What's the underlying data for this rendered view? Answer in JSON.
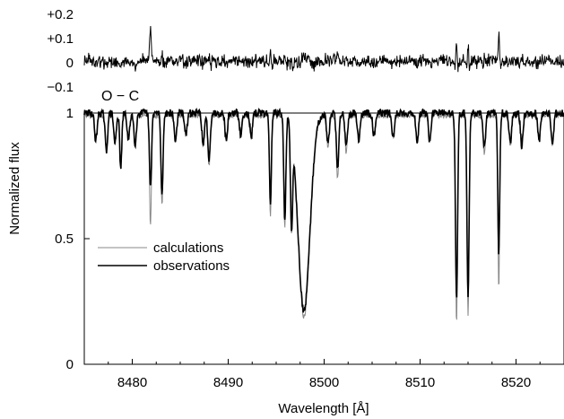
{
  "chart_data": {
    "type": "line",
    "xlabel": "Wavelength [Å]",
    "ylabel": "Normalized flux",
    "xlim": [
      8475,
      8525
    ],
    "ylim": [
      0,
      1
    ],
    "x_ticks": [
      8480,
      8490,
      8500,
      8510,
      8520
    ],
    "x_tick_labels": [
      "8480",
      "8490",
      "8500",
      "8510",
      "8520"
    ],
    "y_ticks": [
      0,
      0.5,
      1
    ],
    "y_tick_labels": [
      "0",
      "0.5",
      "1"
    ],
    "residual_panel": {
      "label": "O − C",
      "ylim": [
        -0.1,
        0.2
      ],
      "y_ticks": [
        -0.1,
        0,
        0.1,
        0.2
      ],
      "y_tick_labels": [
        "−0.1",
        "0",
        "+0.1",
        "+0.2"
      ]
    },
    "legend": {
      "placement": "lower-left",
      "entries": [
        "calculations",
        "observations"
      ]
    },
    "series": [
      {
        "name": "calculations",
        "color": "#888888",
        "lines": [
          {
            "center": 8476.2,
            "depth": 0.1,
            "width": 0.12
          },
          {
            "center": 8477.3,
            "depth": 0.14,
            "width": 0.12
          },
          {
            "center": 8478.2,
            "depth": 0.12,
            "width": 0.12
          },
          {
            "center": 8478.8,
            "depth": 0.2,
            "width": 0.1
          },
          {
            "center": 8479.6,
            "depth": 0.1,
            "width": 0.12
          },
          {
            "center": 8480.3,
            "depth": 0.11,
            "width": 0.12
          },
          {
            "center": 8481.9,
            "depth": 0.44,
            "width": 0.1
          },
          {
            "center": 8483.1,
            "depth": 0.36,
            "width": 0.1
          },
          {
            "center": 8484.5,
            "depth": 0.1,
            "width": 0.12
          },
          {
            "center": 8485.6,
            "depth": 0.08,
            "width": 0.12
          },
          {
            "center": 8487.4,
            "depth": 0.12,
            "width": 0.12
          },
          {
            "center": 8488.0,
            "depth": 0.2,
            "width": 0.12
          },
          {
            "center": 8489.8,
            "depth": 0.1,
            "width": 0.12
          },
          {
            "center": 8491.3,
            "depth": 0.08,
            "width": 0.12
          },
          {
            "center": 8492.4,
            "depth": 0.09,
            "width": 0.12
          },
          {
            "center": 8494.4,
            "depth": 0.41,
            "width": 0.09
          },
          {
            "center": 8495.9,
            "depth": 0.45,
            "width": 0.1
          },
          {
            "center": 8496.6,
            "depth": 0.4,
            "width": 0.1
          },
          {
            "center": 8497.9,
            "depth": 0.8,
            "width": 0.6
          },
          {
            "center": 8500.4,
            "depth": 0.12,
            "width": 0.14
          },
          {
            "center": 8501.4,
            "depth": 0.25,
            "width": 0.12
          },
          {
            "center": 8502.3,
            "depth": 0.15,
            "width": 0.12
          },
          {
            "center": 8503.6,
            "depth": 0.1,
            "width": 0.12
          },
          {
            "center": 8505.2,
            "depth": 0.08,
            "width": 0.12
          },
          {
            "center": 8507.2,
            "depth": 0.09,
            "width": 0.12
          },
          {
            "center": 8509.7,
            "depth": 0.11,
            "width": 0.12
          },
          {
            "center": 8511.0,
            "depth": 0.1,
            "width": 0.12
          },
          {
            "center": 8513.8,
            "depth": 0.83,
            "width": 0.1
          },
          {
            "center": 8515.0,
            "depth": 0.8,
            "width": 0.1
          },
          {
            "center": 8516.7,
            "depth": 0.15,
            "width": 0.12
          },
          {
            "center": 8518.2,
            "depth": 0.69,
            "width": 0.09
          },
          {
            "center": 8519.4,
            "depth": 0.12,
            "width": 0.12
          },
          {
            "center": 8520.6,
            "depth": 0.14,
            "width": 0.12
          },
          {
            "center": 8522.4,
            "depth": 0.1,
            "width": 0.12
          },
          {
            "center": 8523.8,
            "depth": 0.12,
            "width": 0.12
          }
        ]
      },
      {
        "name": "observations",
        "color": "#000000",
        "lines": [
          {
            "center": 8476.2,
            "depth": 0.11,
            "width": 0.13
          },
          {
            "center": 8477.3,
            "depth": 0.15,
            "width": 0.13
          },
          {
            "center": 8478.2,
            "depth": 0.12,
            "width": 0.13
          },
          {
            "center": 8478.8,
            "depth": 0.22,
            "width": 0.11
          },
          {
            "center": 8479.6,
            "depth": 0.11,
            "width": 0.13
          },
          {
            "center": 8480.3,
            "depth": 0.12,
            "width": 0.13
          },
          {
            "center": 8481.9,
            "depth": 0.3,
            "width": 0.11
          },
          {
            "center": 8483.1,
            "depth": 0.33,
            "width": 0.11
          },
          {
            "center": 8484.5,
            "depth": 0.11,
            "width": 0.13
          },
          {
            "center": 8485.6,
            "depth": 0.09,
            "width": 0.13
          },
          {
            "center": 8487.4,
            "depth": 0.13,
            "width": 0.13
          },
          {
            "center": 8488.0,
            "depth": 0.18,
            "width": 0.13
          },
          {
            "center": 8489.8,
            "depth": 0.11,
            "width": 0.13
          },
          {
            "center": 8491.3,
            "depth": 0.09,
            "width": 0.13
          },
          {
            "center": 8492.4,
            "depth": 0.1,
            "width": 0.13
          },
          {
            "center": 8494.4,
            "depth": 0.37,
            "width": 0.1
          },
          {
            "center": 8495.9,
            "depth": 0.42,
            "width": 0.11
          },
          {
            "center": 8496.6,
            "depth": 0.38,
            "width": 0.11
          },
          {
            "center": 8497.9,
            "depth": 0.79,
            "width": 0.62
          },
          {
            "center": 8500.4,
            "depth": 0.12,
            "width": 0.14
          },
          {
            "center": 8501.4,
            "depth": 0.22,
            "width": 0.13
          },
          {
            "center": 8502.3,
            "depth": 0.13,
            "width": 0.13
          },
          {
            "center": 8503.6,
            "depth": 0.11,
            "width": 0.13
          },
          {
            "center": 8505.2,
            "depth": 0.09,
            "width": 0.13
          },
          {
            "center": 8507.2,
            "depth": 0.1,
            "width": 0.13
          },
          {
            "center": 8509.7,
            "depth": 0.12,
            "width": 0.13
          },
          {
            "center": 8511.0,
            "depth": 0.11,
            "width": 0.13
          },
          {
            "center": 8513.8,
            "depth": 0.75,
            "width": 0.11
          },
          {
            "center": 8515.0,
            "depth": 0.74,
            "width": 0.11
          },
          {
            "center": 8516.7,
            "depth": 0.14,
            "width": 0.13
          },
          {
            "center": 8518.2,
            "depth": 0.56,
            "width": 0.1
          },
          {
            "center": 8519.4,
            "depth": 0.12,
            "width": 0.13
          },
          {
            "center": 8520.6,
            "depth": 0.13,
            "width": 0.13
          },
          {
            "center": 8522.4,
            "depth": 0.11,
            "width": 0.13
          },
          {
            "center": 8523.8,
            "depth": 0.12,
            "width": 0.13
          }
        ]
      }
    ]
  }
}
